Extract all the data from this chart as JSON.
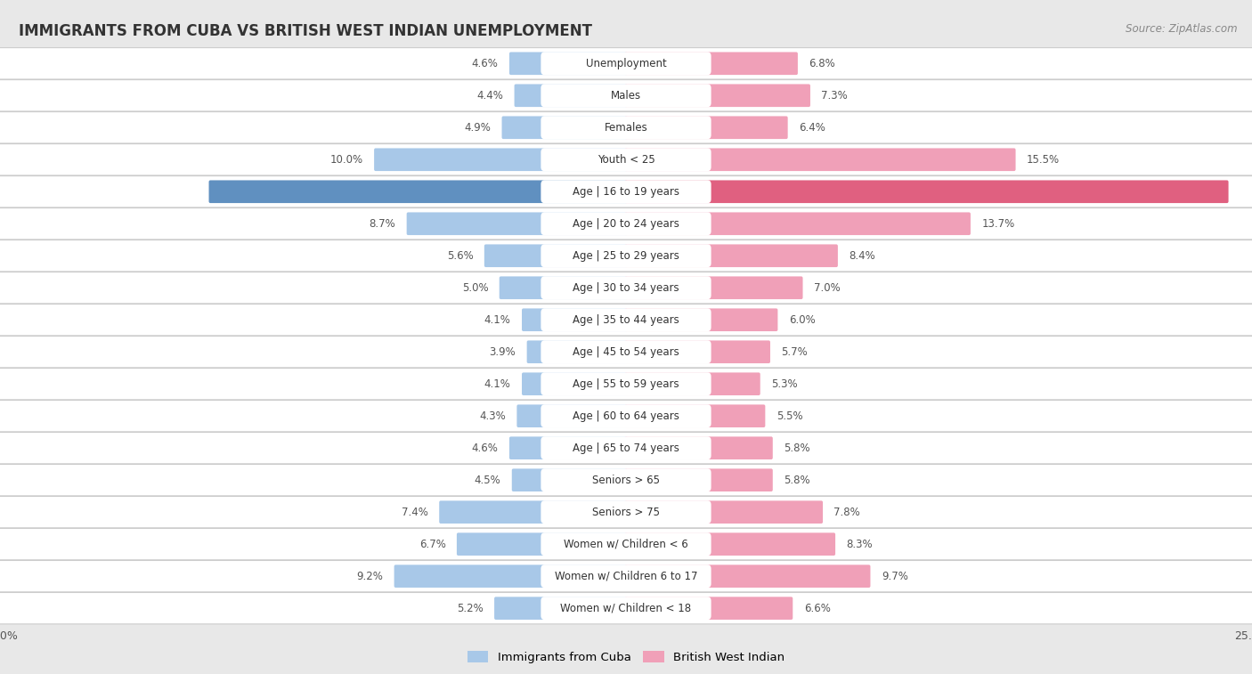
{
  "title": "IMMIGRANTS FROM CUBA VS BRITISH WEST INDIAN UNEMPLOYMENT",
  "source": "Source: ZipAtlas.com",
  "categories": [
    "Unemployment",
    "Males",
    "Females",
    "Youth < 25",
    "Age | 16 to 19 years",
    "Age | 20 to 24 years",
    "Age | 25 to 29 years",
    "Age | 30 to 34 years",
    "Age | 35 to 44 years",
    "Age | 45 to 54 years",
    "Age | 55 to 59 years",
    "Age | 60 to 64 years",
    "Age | 65 to 74 years",
    "Seniors > 65",
    "Seniors > 75",
    "Women w/ Children < 6",
    "Women w/ Children 6 to 17",
    "Women w/ Children < 18"
  ],
  "cuba_values": [
    4.6,
    4.4,
    4.9,
    10.0,
    16.6,
    8.7,
    5.6,
    5.0,
    4.1,
    3.9,
    4.1,
    4.3,
    4.6,
    4.5,
    7.4,
    6.7,
    9.2,
    5.2
  ],
  "bwi_values": [
    6.8,
    7.3,
    6.4,
    15.5,
    24.0,
    13.7,
    8.4,
    7.0,
    6.0,
    5.7,
    5.3,
    5.5,
    5.8,
    5.8,
    7.8,
    8.3,
    9.7,
    6.6
  ],
  "cuba_color": "#a8c8e8",
  "bwi_color": "#f0a0b8",
  "cuba_highlight_color": "#6090c0",
  "bwi_highlight_color": "#e06080",
  "highlight_rows": [
    4
  ],
  "background_color": "#e8e8e8",
  "row_bg_white": "#ffffff",
  "row_bg_light": "#f0f0f0",
  "axis_limit": 25.0,
  "legend_cuba": "Immigrants from Cuba",
  "legend_bwi": "British West Indian",
  "value_fontsize": 8.5,
  "label_fontsize": 8.5
}
